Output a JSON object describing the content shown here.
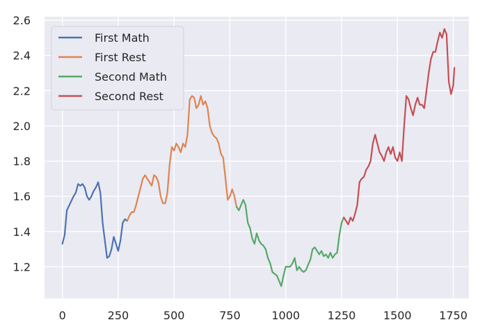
{
  "chart_data": {
    "type": "line",
    "xlim": [
      -80,
      1820
    ],
    "ylim": [
      1.02,
      2.62
    ],
    "xticks": [
      0,
      250,
      500,
      750,
      1000,
      1250,
      1500,
      1750
    ],
    "yticks": [
      1.2,
      1.4,
      1.6,
      1.8,
      2.0,
      2.2,
      2.4,
      2.6
    ],
    "xtick_labels": [
      "0",
      "250",
      "500",
      "750",
      "1000",
      "1250",
      "1500",
      "1750"
    ],
    "ytick_labels": [
      "1.2",
      "1.4",
      "1.6",
      "1.8",
      "2.0",
      "2.2",
      "2.4",
      "2.6"
    ],
    "grid": true,
    "legend_position": "top-left",
    "series": [
      {
        "name": "First Math",
        "color": "#4c72b0",
        "points": [
          [
            0,
            1.33
          ],
          [
            10,
            1.38
          ],
          [
            20,
            1.52
          ],
          [
            35,
            1.56
          ],
          [
            50,
            1.6
          ],
          [
            60,
            1.62
          ],
          [
            70,
            1.67
          ],
          [
            80,
            1.66
          ],
          [
            90,
            1.67
          ],
          [
            100,
            1.65
          ],
          [
            110,
            1.6
          ],
          [
            120,
            1.58
          ],
          [
            130,
            1.6
          ],
          [
            140,
            1.63
          ],
          [
            150,
            1.65
          ],
          [
            160,
            1.68
          ],
          [
            170,
            1.62
          ],
          [
            180,
            1.45
          ],
          [
            190,
            1.35
          ],
          [
            200,
            1.25
          ],
          [
            210,
            1.26
          ],
          [
            220,
            1.3
          ],
          [
            230,
            1.37
          ],
          [
            240,
            1.33
          ],
          [
            250,
            1.29
          ],
          [
            260,
            1.35
          ],
          [
            270,
            1.45
          ],
          [
            280,
            1.47
          ],
          [
            290,
            1.46
          ]
        ]
      },
      {
        "name": "First Rest",
        "color": "#dd8452",
        "points": [
          [
            290,
            1.46
          ],
          [
            300,
            1.49
          ],
          [
            310,
            1.51
          ],
          [
            320,
            1.51
          ],
          [
            330,
            1.55
          ],
          [
            340,
            1.6
          ],
          [
            350,
            1.65
          ],
          [
            360,
            1.7
          ],
          [
            370,
            1.72
          ],
          [
            380,
            1.7
          ],
          [
            390,
            1.68
          ],
          [
            400,
            1.66
          ],
          [
            410,
            1.72
          ],
          [
            420,
            1.71
          ],
          [
            430,
            1.68
          ],
          [
            440,
            1.6
          ],
          [
            450,
            1.56
          ],
          [
            460,
            1.56
          ],
          [
            470,
            1.62
          ],
          [
            480,
            1.78
          ],
          [
            490,
            1.88
          ],
          [
            500,
            1.86
          ],
          [
            510,
            1.9
          ],
          [
            520,
            1.88
          ],
          [
            530,
            1.85
          ],
          [
            540,
            1.9
          ],
          [
            550,
            1.88
          ],
          [
            560,
            1.95
          ],
          [
            570,
            2.15
          ],
          [
            580,
            2.17
          ],
          [
            590,
            2.16
          ],
          [
            600,
            2.1
          ],
          [
            610,
            2.12
          ],
          [
            620,
            2.17
          ],
          [
            630,
            2.12
          ],
          [
            640,
            2.14
          ],
          [
            650,
            2.1
          ],
          [
            660,
            2.0
          ],
          [
            670,
            1.96
          ],
          [
            680,
            1.94
          ],
          [
            690,
            1.93
          ],
          [
            700,
            1.9
          ],
          [
            710,
            1.84
          ],
          [
            720,
            1.82
          ],
          [
            730,
            1.7
          ],
          [
            740,
            1.58
          ],
          [
            750,
            1.6
          ],
          [
            760,
            1.64
          ],
          [
            770,
            1.6
          ],
          [
            780,
            1.54
          ]
        ]
      },
      {
        "name": "Second Math",
        "color": "#55a868",
        "points": [
          [
            780,
            1.54
          ],
          [
            790,
            1.52
          ],
          [
            800,
            1.55
          ],
          [
            810,
            1.58
          ],
          [
            820,
            1.55
          ],
          [
            830,
            1.45
          ],
          [
            840,
            1.42
          ],
          [
            850,
            1.36
          ],
          [
            860,
            1.33
          ],
          [
            870,
            1.39
          ],
          [
            880,
            1.35
          ],
          [
            890,
            1.33
          ],
          [
            900,
            1.32
          ],
          [
            910,
            1.3
          ],
          [
            920,
            1.25
          ],
          [
            930,
            1.22
          ],
          [
            940,
            1.17
          ],
          [
            950,
            1.16
          ],
          [
            960,
            1.15
          ],
          [
            970,
            1.12
          ],
          [
            980,
            1.09
          ],
          [
            990,
            1.15
          ],
          [
            1000,
            1.2
          ],
          [
            1010,
            1.2
          ],
          [
            1020,
            1.2
          ],
          [
            1030,
            1.22
          ],
          [
            1040,
            1.25
          ],
          [
            1050,
            1.18
          ],
          [
            1060,
            1.2
          ],
          [
            1070,
            1.18
          ],
          [
            1080,
            1.17
          ],
          [
            1090,
            1.18
          ],
          [
            1100,
            1.21
          ],
          [
            1110,
            1.24
          ],
          [
            1120,
            1.3
          ],
          [
            1130,
            1.31
          ],
          [
            1140,
            1.29
          ],
          [
            1150,
            1.27
          ],
          [
            1160,
            1.29
          ],
          [
            1170,
            1.26
          ],
          [
            1180,
            1.27
          ],
          [
            1190,
            1.25
          ],
          [
            1200,
            1.28
          ],
          [
            1210,
            1.25
          ],
          [
            1220,
            1.27
          ],
          [
            1230,
            1.28
          ],
          [
            1240,
            1.38
          ],
          [
            1250,
            1.45
          ],
          [
            1260,
            1.48
          ]
        ]
      },
      {
        "name": "Second Rest",
        "color": "#c44e52",
        "points": [
          [
            1260,
            1.48
          ],
          [
            1270,
            1.46
          ],
          [
            1280,
            1.44
          ],
          [
            1290,
            1.48
          ],
          [
            1300,
            1.46
          ],
          [
            1310,
            1.5
          ],
          [
            1320,
            1.55
          ],
          [
            1330,
            1.68
          ],
          [
            1340,
            1.7
          ],
          [
            1350,
            1.71
          ],
          [
            1360,
            1.75
          ],
          [
            1370,
            1.77
          ],
          [
            1380,
            1.8
          ],
          [
            1390,
            1.9
          ],
          [
            1400,
            1.95
          ],
          [
            1410,
            1.9
          ],
          [
            1420,
            1.85
          ],
          [
            1430,
            1.83
          ],
          [
            1440,
            1.8
          ],
          [
            1450,
            1.85
          ],
          [
            1460,
            1.88
          ],
          [
            1470,
            1.84
          ],
          [
            1480,
            1.88
          ],
          [
            1490,
            1.82
          ],
          [
            1500,
            1.8
          ],
          [
            1510,
            1.85
          ],
          [
            1520,
            1.8
          ],
          [
            1530,
            2.0
          ],
          [
            1540,
            2.17
          ],
          [
            1550,
            2.15
          ],
          [
            1560,
            2.1
          ],
          [
            1570,
            2.06
          ],
          [
            1580,
            2.12
          ],
          [
            1590,
            2.16
          ],
          [
            1600,
            2.12
          ],
          [
            1610,
            2.12
          ],
          [
            1620,
            2.1
          ],
          [
            1630,
            2.2
          ],
          [
            1640,
            2.3
          ],
          [
            1650,
            2.38
          ],
          [
            1660,
            2.42
          ],
          [
            1670,
            2.42
          ],
          [
            1680,
            2.48
          ],
          [
            1690,
            2.53
          ],
          [
            1700,
            2.5
          ],
          [
            1710,
            2.55
          ],
          [
            1720,
            2.52
          ],
          [
            1730,
            2.25
          ],
          [
            1740,
            2.18
          ],
          [
            1750,
            2.23
          ],
          [
            1755,
            2.33
          ]
        ]
      }
    ]
  }
}
